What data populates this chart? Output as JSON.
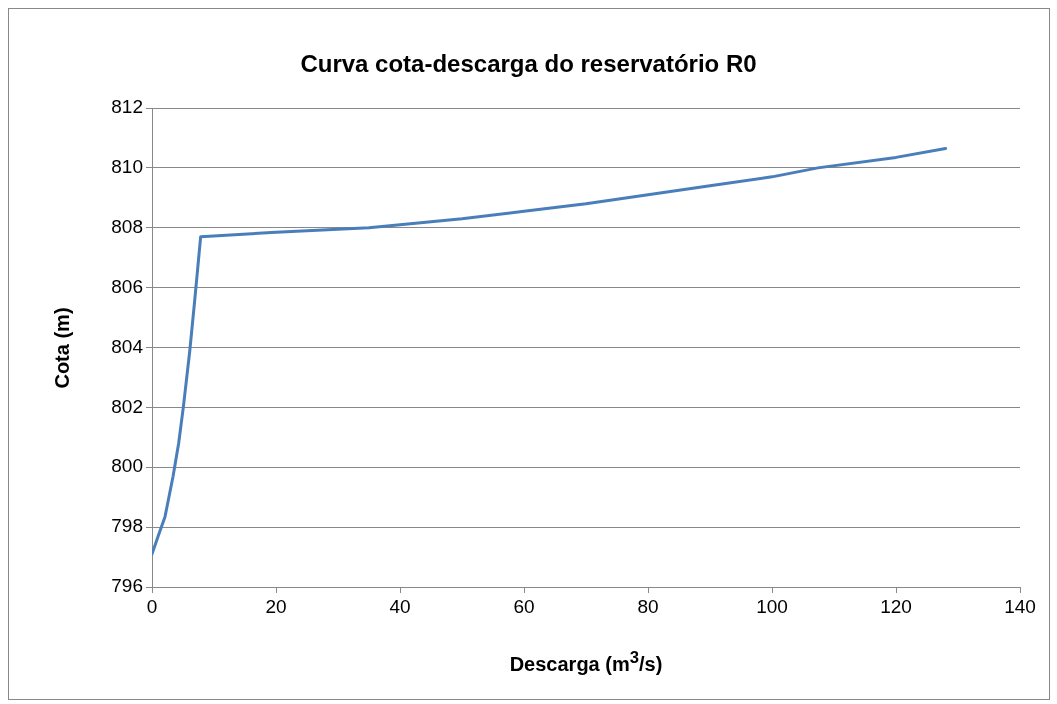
{
  "chart_data": {
    "type": "line",
    "title": "Curva cota-descarga do reservatório R0",
    "xlabel": "Descarga (m$^{3}$/s)",
    "ylabel": "Cota (m)",
    "x": [
      0,
      1,
      2.1,
      3.4,
      4.3,
      5.05,
      6.1,
      6.9,
      7.85,
      20,
      35,
      40,
      50,
      60,
      70,
      80,
      90,
      100,
      107.4,
      120,
      128
    ],
    "series": [
      {
        "color": "#4a7ebb",
        "values": [
          797.1,
          797.7,
          798.35,
          799.7,
          800.8,
          802.0,
          803.9,
          805.6,
          807.7,
          807.85,
          808.0,
          808.1,
          808.3,
          808.55,
          808.8,
          809.1,
          809.4,
          809.7,
          810.0,
          810.35,
          810.65
        ]
      }
    ],
    "xlim": [
      0,
      140
    ],
    "xticks": [
      0,
      20,
      40,
      60,
      80,
      100,
      120,
      140
    ],
    "ylim": [
      796,
      812
    ],
    "yticks": [
      796,
      798,
      800,
      802,
      804,
      806,
      808,
      810,
      812
    ],
    "grid": "y",
    "legend": false,
    "marker": "none",
    "line_style": "solid"
  }
}
